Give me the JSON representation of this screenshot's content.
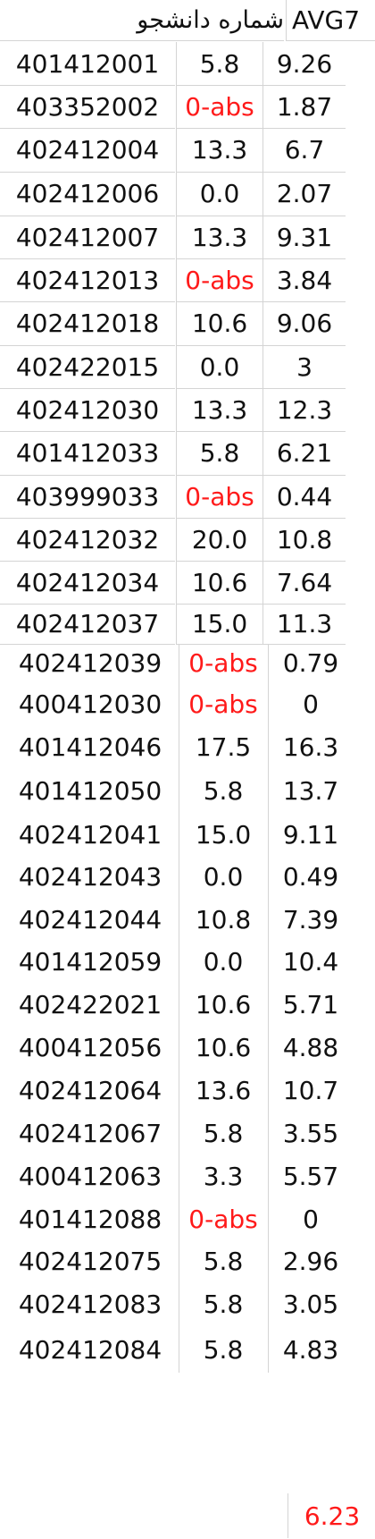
{
  "header": {
    "student_number_label": "شماره دانشجو",
    "avg_label": "AVG7"
  },
  "colors": {
    "absent": "#ff1a1a",
    "total": "#ff1a1a",
    "grid": "#d4d4d4"
  },
  "rows": [
    {
      "id": "401412001",
      "score": "5.8",
      "avg": "9.26"
    },
    {
      "id": "403352002",
      "score": "0-abs",
      "avg": "1.87",
      "absent": true
    },
    {
      "id": "402412004",
      "score": "13.3",
      "avg": "6.7"
    },
    {
      "id": "402412006",
      "score": "0.0",
      "avg": "2.07"
    },
    {
      "id": "402412007",
      "score": "13.3",
      "avg": "9.31"
    },
    {
      "id": "402412013",
      "score": "0-abs",
      "avg": "3.84",
      "absent": true
    },
    {
      "id": "402412018",
      "score": "10.6",
      "avg": "9.06"
    },
    {
      "id": "402422015",
      "score": "0.0",
      "avg": "3"
    },
    {
      "id": "402412030",
      "score": "13.3",
      "avg": "12.3"
    },
    {
      "id": "401412033",
      "score": "5.8",
      "avg": "6.21"
    },
    {
      "id": "403999033",
      "score": "0-abs",
      "avg": "0.44",
      "absent": true
    },
    {
      "id": "402412032",
      "score": "20.0",
      "avg": "10.8"
    },
    {
      "id": "402412034",
      "score": "10.6",
      "avg": "7.64"
    },
    {
      "id": "402412037",
      "score": "15.0",
      "avg": "11.3"
    },
    {
      "id": "402412039",
      "score": "0-abs",
      "avg": "0.79",
      "absent": true
    },
    {
      "id": "400412030",
      "score": "0-abs",
      "avg": "0",
      "absent": true
    },
    {
      "id": "401412046",
      "score": "17.5",
      "avg": "16.3"
    },
    {
      "id": "401412050",
      "score": "5.8",
      "avg": "13.7"
    },
    {
      "id": "402412041",
      "score": "15.0",
      "avg": "9.11"
    },
    {
      "id": "402412043",
      "score": "0.0",
      "avg": "0.49"
    },
    {
      "id": "402412044",
      "score": "10.8",
      "avg": "7.39"
    },
    {
      "id": "401412059",
      "score": "0.0",
      "avg": "10.4"
    },
    {
      "id": "402422021",
      "score": "10.6",
      "avg": "5.71"
    },
    {
      "id": "400412056",
      "score": "10.6",
      "avg": "4.88"
    },
    {
      "id": "402412064",
      "score": "13.6",
      "avg": "10.7"
    },
    {
      "id": "402412067",
      "score": "5.8",
      "avg": "3.55"
    },
    {
      "id": "400412063",
      "score": "3.3",
      "avg": "5.57"
    },
    {
      "id": "401412088",
      "score": "0-abs",
      "avg": "0",
      "absent": true
    },
    {
      "id": "402412075",
      "score": "5.8",
      "avg": "2.96"
    },
    {
      "id": "402412083",
      "score": "5.8",
      "avg": "3.05"
    },
    {
      "id": "402412084",
      "score": "5.8",
      "avg": "4.83"
    }
  ],
  "total_avg": "6.23"
}
